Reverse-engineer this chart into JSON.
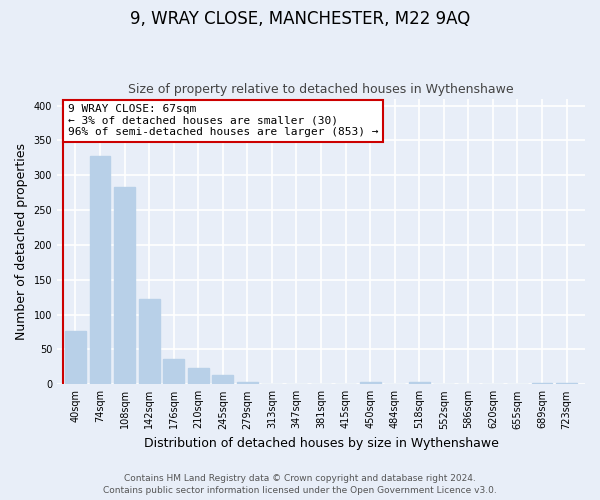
{
  "title": "9, WRAY CLOSE, MANCHESTER, M22 9AQ",
  "subtitle": "Size of property relative to detached houses in Wythenshawe",
  "xlabel": "Distribution of detached houses by size in Wythenshawe",
  "ylabel": "Number of detached properties",
  "bar_labels": [
    "40sqm",
    "74sqm",
    "108sqm",
    "142sqm",
    "176sqm",
    "210sqm",
    "245sqm",
    "279sqm",
    "313sqm",
    "347sqm",
    "381sqm",
    "415sqm",
    "450sqm",
    "484sqm",
    "518sqm",
    "552sqm",
    "586sqm",
    "620sqm",
    "655sqm",
    "689sqm",
    "723sqm"
  ],
  "bar_values": [
    77,
    328,
    283,
    122,
    37,
    24,
    14,
    3,
    1,
    0,
    0,
    0,
    4,
    0,
    3,
    0,
    0,
    0,
    0,
    2,
    2
  ],
  "bar_color": "#b8d0e8",
  "annotation_text": "9 WRAY CLOSE: 67sqm\n← 3% of detached houses are smaller (30)\n96% of semi-detached houses are larger (853) →",
  "annotation_box_color": "#ffffff",
  "annotation_box_edge": "#cc0000",
  "marker_line_color": "#cc0000",
  "ylim": [
    0,
    410
  ],
  "yticks": [
    0,
    50,
    100,
    150,
    200,
    250,
    300,
    350,
    400
  ],
  "footer_line1": "Contains HM Land Registry data © Crown copyright and database right 2024.",
  "footer_line2": "Contains public sector information licensed under the Open Government Licence v3.0.",
  "bg_color": "#e8eef8",
  "plot_bg_color": "#e8eef8",
  "title_fontsize": 12,
  "subtitle_fontsize": 9,
  "axis_label_fontsize": 9,
  "tick_fontsize": 7,
  "footer_fontsize": 6.5,
  "annotation_fontsize": 8
}
